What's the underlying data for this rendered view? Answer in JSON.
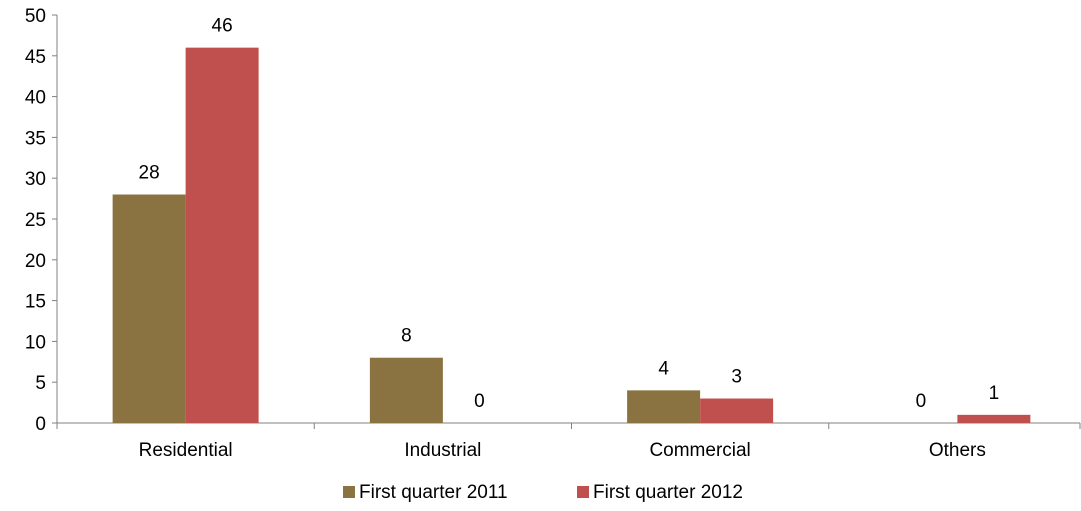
{
  "chart_data": {
    "type": "bar",
    "categories": [
      "Residential",
      "Industrial",
      "Commercial",
      "Others"
    ],
    "series": [
      {
        "name": "First quarter 2011",
        "values": [
          28,
          8,
          4,
          0
        ],
        "color": "#8b7341"
      },
      {
        "name": "First quarter 2012",
        "values": [
          46,
          0,
          3,
          1
        ],
        "color": "#c0504d"
      }
    ],
    "ylim": [
      0,
      50
    ],
    "yticks": [
      0,
      5,
      10,
      15,
      20,
      25,
      30,
      35,
      40,
      45,
      50
    ],
    "grid": false,
    "legend_position": "bottom"
  }
}
